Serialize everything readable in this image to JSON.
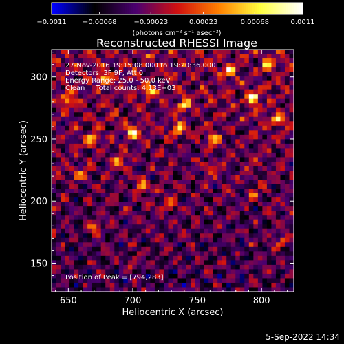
{
  "chart_data": {
    "type": "heatmap",
    "title": "Reconstructed RHESSI Image",
    "xlabel": "Heliocentric X (arcsec)",
    "ylabel": "Heliocentric Y (arcsec)",
    "xlim": [
      637,
      825
    ],
    "ylim": [
      127,
      322
    ],
    "x_ticks": [
      650,
      700,
      750,
      800
    ],
    "y_ticks": [
      150,
      200,
      250,
      300
    ],
    "colorbar": {
      "min": -0.0011,
      "max": 0.0011,
      "tick_values": [
        -0.0011,
        -0.00068,
        -0.00023,
        0.00023,
        0.00068,
        0.0011
      ],
      "tick_labels": [
        "−0.0011",
        "−0.00068",
        "−0.00023",
        "0.00023",
        "0.00068",
        "0.0011"
      ],
      "unit_label": "(photons cm⁻² s⁻¹ asec⁻²)",
      "colormap": [
        "#0000ff",
        "#000000",
        "#4a0070",
        "#d01010",
        "#ff8000",
        "#ffff40",
        "#ffffff"
      ]
    },
    "annotations": [
      "27-Nov-2016 19:15:08.000 to 19:20:36.000",
      "Detectors: 3F 9F, Att 0",
      "Energy Range: 25.0 - 50.0 keV",
      "Clean     Total counts: 4.13E+03"
    ],
    "peak_label": "Position of Peak = [794,283]",
    "peak": {
      "x": 794,
      "y": 283
    },
    "bright_spots": [
      {
        "x": 794,
        "y": 283,
        "intensity": 1.0
      },
      {
        "x": 740,
        "y": 277,
        "intensity": 0.85
      },
      {
        "x": 812,
        "y": 265,
        "intensity": 0.8
      },
      {
        "x": 700,
        "y": 255,
        "intensity": 0.85
      },
      {
        "x": 668,
        "y": 250,
        "intensity": 0.8
      },
      {
        "x": 735,
        "y": 258,
        "intensity": 0.75
      },
      {
        "x": 763,
        "y": 250,
        "intensity": 0.75
      },
      {
        "x": 712,
        "y": 288,
        "intensity": 0.7
      },
      {
        "x": 678,
        "y": 298,
        "intensity": 0.7
      },
      {
        "x": 650,
        "y": 282,
        "intensity": 0.7
      },
      {
        "x": 708,
        "y": 212,
        "intensity": 0.7
      },
      {
        "x": 690,
        "y": 232,
        "intensity": 0.65
      },
      {
        "x": 658,
        "y": 222,
        "intensity": 0.6
      },
      {
        "x": 728,
        "y": 196,
        "intensity": 0.5
      },
      {
        "x": 672,
        "y": 178,
        "intensity": 0.5
      },
      {
        "x": 760,
        "y": 228,
        "intensity": 0.45
      },
      {
        "x": 793,
        "y": 205,
        "intensity": 0.45
      },
      {
        "x": 815,
        "y": 168,
        "intensity": 0.4
      },
      {
        "x": 700,
        "y": 150,
        "intensity": 0.4
      },
      {
        "x": 775,
        "y": 305,
        "intensity": 0.7
      },
      {
        "x": 805,
        "y": 310,
        "intensity": 0.65
      }
    ]
  },
  "footer": {
    "date_stamp": "5-Sep-2022 14:34"
  }
}
